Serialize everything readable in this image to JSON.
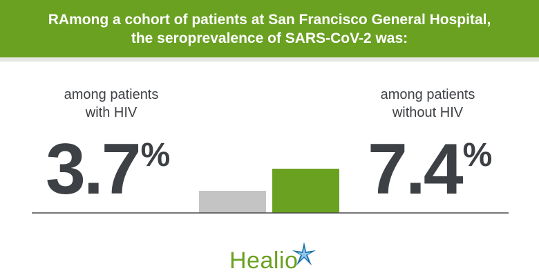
{
  "header": {
    "line1": "RAmong a cohort of patients at San Francisco General Hospital,",
    "line2": "the seroprevalence of SARS-CoV-2 was:"
  },
  "left_panel": {
    "label_line1": "among patients",
    "label_line2": "with HIV",
    "value": "3.7",
    "unit": "%"
  },
  "right_panel": {
    "label_line1": "among patients",
    "label_line2": "without HIV",
    "value": "7.4",
    "unit": "%"
  },
  "brand": {
    "name": "Healio",
    "icon": "star-logo-icon"
  },
  "colors": {
    "banner": "#6aa121",
    "bar_with_hiv": "#c4c4c4",
    "bar_without_hiv": "#6aa121",
    "text": "#3d4044",
    "baseline": "#4a4a4a",
    "star_blue": "#1b6fa8"
  },
  "chart_data": {
    "type": "bar",
    "categories": [
      "with HIV",
      "without HIV"
    ],
    "values": [
      3.7,
      7.4
    ],
    "unit": "%",
    "ylim": [
      0,
      7.4
    ]
  }
}
